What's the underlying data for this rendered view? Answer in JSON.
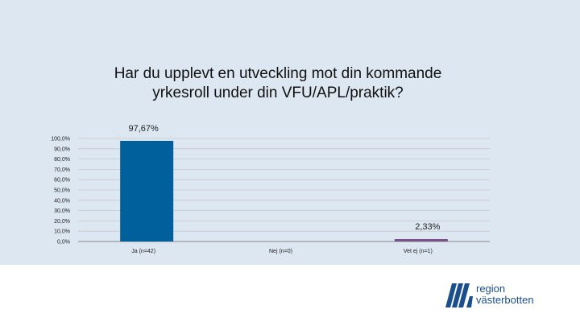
{
  "logo": {
    "text": "region\nvästerbotten",
    "color": "#1a4f8b"
  },
  "colors": {
    "panel": "#dde7f2",
    "bar": "#00609c",
    "bar_small": "#7a4f8a",
    "grid": "#c8c8c8"
  },
  "chart_data": {
    "type": "bar",
    "title": "Har du upplevt en utveckling mot din kommande yrkesroll under din VFU/APL/praktik?",
    "categories": [
      "Ja (n=42)",
      "Nej (n=0)",
      "Vet ej (n=1)"
    ],
    "values": [
      97.67,
      0,
      2.33
    ],
    "data_labels": [
      "97,67%",
      "",
      "2,33%"
    ],
    "ylim": [
      0,
      100
    ],
    "yticks": [
      "0,0%",
      "10,0%",
      "20,0%",
      "30,0%",
      "40,0%",
      "50,0%",
      "60,0%",
      "70,0%",
      "80,0%",
      "90,0%",
      "100,0%"
    ],
    "xlabel": "",
    "ylabel": "",
    "grid": true,
    "legend": "none"
  }
}
